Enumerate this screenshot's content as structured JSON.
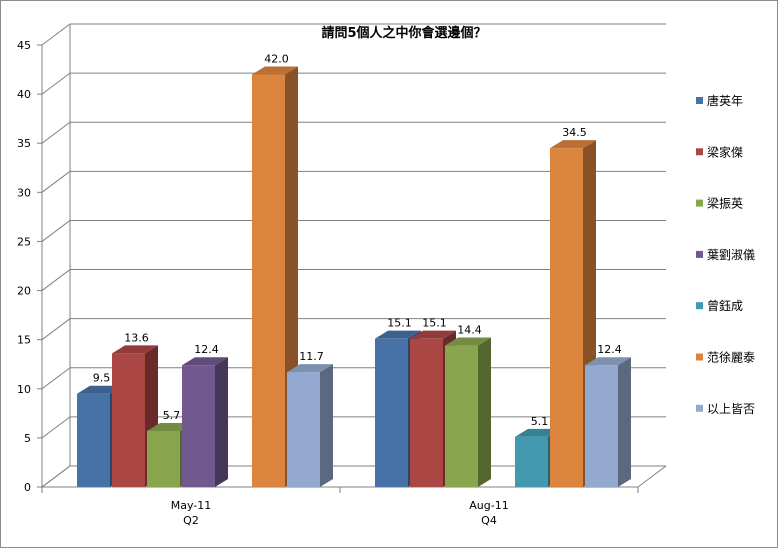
{
  "chart_data": {
    "type": "bar",
    "title": "請問5個人之中你會選邊個？",
    "categories": [
      {
        "line1": "May-11",
        "line2": "Q2"
      },
      {
        "line1": "Aug-11",
        "line2": "Q4"
      }
    ],
    "yticks": [
      "0",
      "5",
      "10",
      "15",
      "20",
      "25",
      "30",
      "35",
      "40",
      "45"
    ],
    "ylim": [
      0,
      45
    ],
    "grid": true,
    "legend_position": "right",
    "series": [
      {
        "name": "唐英年",
        "color": "#4672a8",
        "values": [
          9.5,
          15.1
        ],
        "labels": [
          "9.5",
          "15.1"
        ]
      },
      {
        "name": "梁家傑",
        "color": "#aa4644",
        "values": [
          13.6,
          15.1
        ],
        "labels": [
          "13.6",
          "15.1"
        ]
      },
      {
        "name": "梁振英",
        "color": "#89a54e",
        "values": [
          5.7,
          14.4
        ],
        "labels": [
          "5.7",
          "14.4"
        ]
      },
      {
        "name": "葉劉淑儀",
        "color": "#71588f",
        "values": [
          12.4,
          null
        ],
        "labels": [
          "12.4",
          ""
        ]
      },
      {
        "name": "曾鈺成",
        "color": "#4198af",
        "values": [
          null,
          5.1
        ],
        "labels": [
          "",
          "5.1"
        ]
      },
      {
        "name": "范徐麗泰",
        "color": "#db843d",
        "values": [
          42.0,
          34.5
        ],
        "labels": [
          "42.0",
          "34.5"
        ]
      },
      {
        "name": "以上皆否",
        "color": "#93a9cf",
        "values": [
          11.7,
          12.4
        ],
        "labels": [
          "11.7",
          "12.4"
        ]
      }
    ]
  }
}
